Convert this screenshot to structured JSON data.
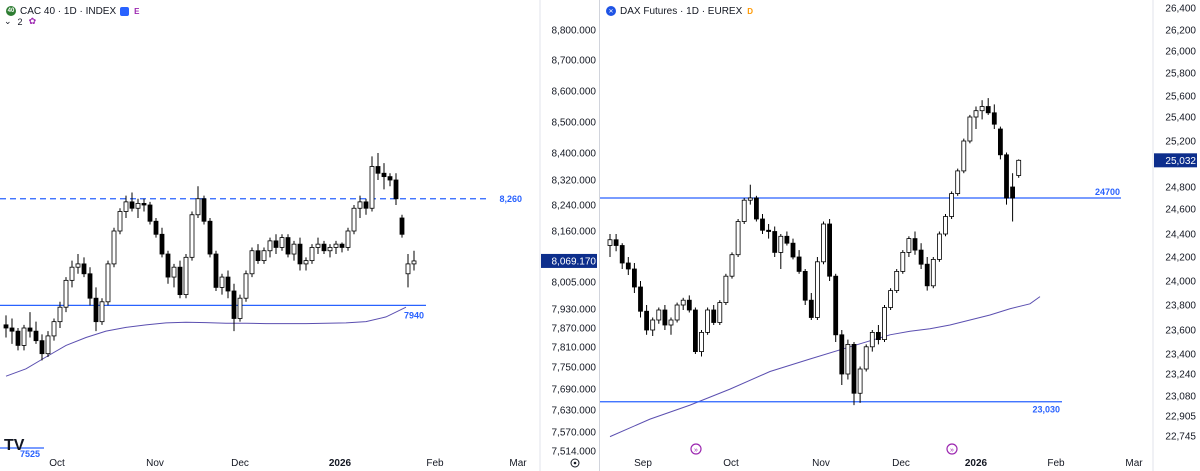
{
  "left_chart": {
    "legend": {
      "symbol_title": "CAC 40 · 1D · INDEX",
      "icon": "cac-logo-icon",
      "flag_color": "#2962ff",
      "tag": "E",
      "tag_color": "#9c27b0",
      "indicators_count": "2"
    },
    "price_labels": [
      "8,800.000",
      "8,700.000",
      "8,600.000",
      "8,500.000",
      "8,400.000",
      "8,320.000",
      "8,240.000",
      "8,160.000",
      "8,005.000",
      "7,930.000",
      "7,870.000",
      "7,810.000",
      "7,750.000",
      "7,690.000",
      "7,630.000",
      "7,570.000",
      "7,514.000"
    ],
    "current_price_label": "8,069.170",
    "line_labels": {
      "resistance": "8,260",
      "support": "7940",
      "bottom": "7525"
    },
    "time_labels": [
      "Oct",
      "Nov",
      "Dec",
      "2026",
      "Feb",
      "Mar"
    ],
    "watermark": "TV",
    "settings_icon": "gear-icon"
  },
  "right_chart": {
    "legend": {
      "symbol_title": "DAX Futures · 1D · EUREX",
      "icon": "dax-logo-icon",
      "tag": "D",
      "tag_color": "#ff9800"
    },
    "price_labels": [
      "26,400",
      "26,200",
      "26,000",
      "25,800",
      "25,600",
      "25,400",
      "25,200",
      "24,800",
      "24,600",
      "24,400",
      "24,200",
      "24,000",
      "23,800",
      "23,600",
      "23,400",
      "23,240",
      "23,080",
      "22,905",
      "22,745"
    ],
    "current_price_label": "25,032",
    "line_labels": {
      "resistance": "24700",
      "support": "23,030"
    },
    "time_labels": [
      "Sep",
      "Oct",
      "Nov",
      "Dec",
      "2026",
      "Feb",
      "Mar"
    ],
    "event_icons": [
      "event-marker-icon",
      "event-marker-icon"
    ]
  },
  "colors": {
    "up_candle_fill": "#ffffff",
    "candle_border": "#000000",
    "down_candle_fill": "#000000",
    "level_line": "#2962ff",
    "moving_average": "#5b4fb0",
    "axis_text": "#131722",
    "current_price_bg": "#0d2e8c"
  },
  "chart_data": [
    {
      "type": "candlestick",
      "title": "CAC 40 · 1D · INDEX",
      "xlabel": "",
      "ylabel": "",
      "x_ticks": [
        "Oct",
        "Nov",
        "Dec",
        "2026",
        "Feb",
        "Mar"
      ],
      "y_scale": "log-like",
      "y_ticks": [
        8800,
        8700,
        8600,
        8500,
        8400,
        8320,
        8240,
        8160,
        8005,
        7930,
        7870,
        7810,
        7750,
        7690,
        7630,
        7570,
        7514
      ],
      "levels": [
        {
          "label": "8,260",
          "value": 8260,
          "style": "dashed"
        },
        {
          "label": "7940",
          "value": 7940,
          "style": "solid"
        }
      ],
      "moving_average": [
        [
          0,
          7725
        ],
        [
          20,
          7745
        ],
        [
          40,
          7780
        ],
        [
          60,
          7815
        ],
        [
          80,
          7840
        ],
        [
          100,
          7860
        ],
        [
          120,
          7872
        ],
        [
          140,
          7880
        ],
        [
          160,
          7886
        ],
        [
          180,
          7888
        ],
        [
          200,
          7887
        ],
        [
          220,
          7885
        ],
        [
          240,
          7885
        ],
        [
          260,
          7884
        ],
        [
          280,
          7884
        ],
        [
          300,
          7884
        ],
        [
          320,
          7885
        ],
        [
          340,
          7886
        ],
        [
          360,
          7890
        ],
        [
          380,
          7905
        ],
        [
          400,
          7935
        ]
      ],
      "candles": [
        [
          7880,
          7910,
          7840,
          7870
        ],
        [
          7870,
          7900,
          7820,
          7860
        ],
        [
          7860,
          7870,
          7800,
          7815
        ],
        [
          7815,
          7880,
          7800,
          7870
        ],
        [
          7870,
          7920,
          7840,
          7860
        ],
        [
          7860,
          7890,
          7820,
          7830
        ],
        [
          7830,
          7850,
          7770,
          7790
        ],
        [
          7790,
          7860,
          7780,
          7845
        ],
        [
          7845,
          7900,
          7830,
          7890
        ],
        [
          7890,
          7950,
          7870,
          7935
        ],
        [
          7935,
          8020,
          7920,
          8010
        ],
        [
          8010,
          8070,
          7990,
          8050
        ],
        [
          8050,
          8090,
          8030,
          8060
        ],
        [
          8060,
          8080,
          8020,
          8030
        ],
        [
          8030,
          8050,
          7940,
          7960
        ],
        [
          7960,
          7990,
          7860,
          7890
        ],
        [
          7890,
          7960,
          7880,
          7950
        ],
        [
          7950,
          8070,
          7940,
          8060
        ],
        [
          8060,
          8170,
          8050,
          8160
        ],
        [
          8160,
          8230,
          8150,
          8220
        ],
        [
          8220,
          8270,
          8200,
          8250
        ],
        [
          8250,
          8280,
          8220,
          8230
        ],
        [
          8230,
          8260,
          8200,
          8245
        ],
        [
          8245,
          8260,
          8220,
          8240
        ],
        [
          8240,
          8250,
          8180,
          8190
        ],
        [
          8190,
          8200,
          8140,
          8150
        ],
        [
          8150,
          8170,
          8080,
          8090
        ],
        [
          8090,
          8100,
          8000,
          8020
        ],
        [
          8020,
          8060,
          7990,
          8050
        ],
        [
          8050,
          8070,
          7960,
          7970
        ],
        [
          7970,
          8090,
          7960,
          8080
        ],
        [
          8080,
          8220,
          8070,
          8210
        ],
        [
          8210,
          8300,
          8200,
          8260
        ],
        [
          8260,
          8270,
          8180,
          8190
        ],
        [
          8190,
          8200,
          8080,
          8090
        ],
        [
          8090,
          8100,
          7980,
          7990
        ],
        [
          7990,
          8030,
          7970,
          8020
        ],
        [
          8020,
          8040,
          7960,
          7980
        ],
        [
          7980,
          8000,
          7860,
          7900
        ],
        [
          7900,
          7970,
          7890,
          7960
        ],
        [
          7960,
          8040,
          7950,
          8030
        ],
        [
          8030,
          8110,
          8020,
          8100
        ],
        [
          8100,
          8120,
          8060,
          8070
        ],
        [
          8070,
          8110,
          8060,
          8100
        ],
        [
          8100,
          8140,
          8080,
          8130
        ],
        [
          8130,
          8150,
          8090,
          8110
        ],
        [
          8110,
          8150,
          8100,
          8140
        ],
        [
          8140,
          8150,
          8080,
          8090
        ],
        [
          8090,
          8130,
          8070,
          8120
        ],
        [
          8120,
          8140,
          8040,
          8060
        ],
        [
          8060,
          8080,
          8040,
          8070
        ],
        [
          8070,
          8120,
          8060,
          8110
        ],
        [
          8110,
          8140,
          8090,
          8120
        ],
        [
          8120,
          8130,
          8090,
          8100
        ],
        [
          8100,
          8120,
          8080,
          8110
        ],
        [
          8110,
          8130,
          8090,
          8120
        ],
        [
          8120,
          8125,
          8095,
          8110
        ],
        [
          8110,
          8170,
          8100,
          8160
        ],
        [
          8160,
          8240,
          8150,
          8230
        ],
        [
          8230,
          8270,
          8200,
          8250
        ],
        [
          8250,
          8260,
          8210,
          8230
        ],
        [
          8230,
          8390,
          8220,
          8360
        ],
        [
          8360,
          8400,
          8320,
          8340
        ],
        [
          8340,
          8370,
          8290,
          8330
        ],
        [
          8330,
          8340,
          8300,
          8320
        ],
        [
          8320,
          8340,
          8240,
          8260
        ],
        [
          8200,
          8210,
          8140,
          8150
        ],
        [
          8030,
          8090,
          7990,
          8060
        ],
        [
          8060,
          8100,
          8040,
          8069
        ]
      ]
    },
    {
      "type": "candlestick",
      "title": "DAX Futures · 1D · EUREX",
      "xlabel": "",
      "ylabel": "",
      "x_ticks": [
        "Sep",
        "Oct",
        "Nov",
        "Dec",
        "2026",
        "Feb",
        "Mar"
      ],
      "y_scale": "log-like",
      "y_ticks": [
        26400,
        26200,
        26000,
        25800,
        25600,
        25400,
        25200,
        24800,
        24600,
        24400,
        24200,
        24000,
        23800,
        23600,
        23400,
        23240,
        23080,
        22905,
        22745
      ],
      "levels": [
        {
          "label": "24700",
          "value": 24700,
          "style": "solid"
        },
        {
          "label": "23,030",
          "value": 23030,
          "style": "solid"
        }
      ],
      "moving_average": [
        [
          0,
          22740
        ],
        [
          40,
          22880
        ],
        [
          80,
          23000
        ],
        [
          120,
          23130
        ],
        [
          160,
          23260
        ],
        [
          200,
          23360
        ],
        [
          240,
          23460
        ],
        [
          260,
          23510
        ],
        [
          280,
          23560
        ],
        [
          300,
          23590
        ],
        [
          320,
          23610
        ],
        [
          340,
          23640
        ],
        [
          360,
          23680
        ],
        [
          380,
          23720
        ],
        [
          400,
          23770
        ],
        [
          420,
          23810
        ],
        [
          430,
          23870
        ]
      ],
      "candles": [
        [
          24300,
          24400,
          24200,
          24350
        ],
        [
          24350,
          24400,
          24250,
          24300
        ],
        [
          24300,
          24320,
          24100,
          24150
        ],
        [
          24150,
          24200,
          24050,
          24100
        ],
        [
          24100,
          24150,
          23900,
          23950
        ],
        [
          23950,
          24000,
          23700,
          23750
        ],
        [
          23750,
          23800,
          23560,
          23600
        ],
        [
          23600,
          23700,
          23550,
          23680
        ],
        [
          23680,
          23780,
          23650,
          23760
        ],
        [
          23760,
          23800,
          23600,
          23640
        ],
        [
          23640,
          23700,
          23560,
          23680
        ],
        [
          23680,
          23820,
          23660,
          23800
        ],
        [
          23800,
          23860,
          23760,
          23840
        ],
        [
          23840,
          23880,
          23740,
          23760
        ],
        [
          23760,
          23780,
          23400,
          23420
        ],
        [
          23420,
          23600,
          23380,
          23580
        ],
        [
          23580,
          23780,
          23560,
          23760
        ],
        [
          23760,
          23800,
          23640,
          23660
        ],
        [
          23660,
          23840,
          23640,
          23820
        ],
        [
          23820,
          24060,
          23800,
          24040
        ],
        [
          24040,
          24240,
          24020,
          24220
        ],
        [
          24220,
          24520,
          24200,
          24500
        ],
        [
          24500,
          24700,
          24480,
          24680
        ],
        [
          24680,
          24820,
          24640,
          24700
        ],
        [
          24700,
          24720,
          24500,
          24520
        ],
        [
          24520,
          24560,
          24400,
          24430
        ],
        [
          24430,
          24480,
          24360,
          24420
        ],
        [
          24420,
          24460,
          24200,
          24240
        ],
        [
          24240,
          24400,
          24100,
          24380
        ],
        [
          24380,
          24420,
          24300,
          24320
        ],
        [
          24320,
          24360,
          24180,
          24200
        ],
        [
          24200,
          24260,
          24060,
          24080
        ],
        [
          24080,
          24100,
          23800,
          23840
        ],
        [
          23840,
          23900,
          23680,
          23700
        ],
        [
          23700,
          24200,
          23680,
          24160
        ],
        [
          24160,
          24500,
          24140,
          24480
        ],
        [
          24480,
          24520,
          24000,
          24040
        ],
        [
          24040,
          24060,
          23500,
          23560
        ],
        [
          23560,
          23600,
          23160,
          23240
        ],
        [
          23240,
          23520,
          23200,
          23480
        ],
        [
          23480,
          23500,
          23000,
          23100
        ],
        [
          23100,
          23300,
          23020,
          23280
        ],
        [
          23280,
          23480,
          23260,
          23460
        ],
        [
          23460,
          23600,
          23420,
          23580
        ],
        [
          23580,
          23640,
          23480,
          23520
        ],
        [
          23520,
          23800,
          23500,
          23780
        ],
        [
          23780,
          23940,
          23760,
          23920
        ],
        [
          23920,
          24100,
          23900,
          24080
        ],
        [
          24080,
          24260,
          24060,
          24240
        ],
        [
          24240,
          24380,
          24200,
          24360
        ],
        [
          24360,
          24420,
          24220,
          24260
        ],
        [
          24260,
          24320,
          24100,
          24140
        ],
        [
          24140,
          24200,
          23920,
          23960
        ],
        [
          23960,
          24200,
          23940,
          24180
        ],
        [
          24180,
          24420,
          24160,
          24400
        ],
        [
          24400,
          24560,
          24380,
          24540
        ],
        [
          24540,
          24760,
          24520,
          24740
        ],
        [
          24740,
          24960,
          24720,
          24940
        ],
        [
          24940,
          25220,
          24920,
          25200
        ],
        [
          25200,
          25420,
          25180,
          25400
        ],
        [
          25400,
          25500,
          25300,
          25460
        ],
        [
          25460,
          25560,
          25380,
          25500
        ],
        [
          25500,
          25580,
          25420,
          25440
        ],
        [
          25440,
          25520,
          25300,
          25340
        ],
        [
          25300,
          25320,
          25040,
          25080
        ],
        [
          25080,
          25100,
          24640,
          24700
        ],
        [
          24800,
          24920,
          24500,
          24700
        ],
        [
          24900,
          25040,
          24880,
          25032
        ]
      ]
    }
  ]
}
